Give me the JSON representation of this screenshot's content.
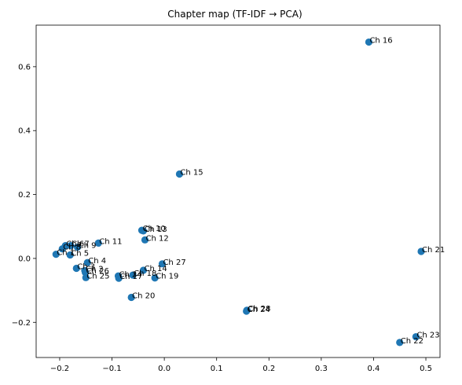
{
  "chart_data": {
    "type": "scatter",
    "title": "Chapter map (TF-IDF → PCA)",
    "xlabel": "",
    "ylabel": "",
    "xlim": [
      -0.245,
      0.527
    ],
    "ylim": [
      -0.31,
      0.73
    ],
    "xticks": [
      -0.2,
      -0.1,
      0.0,
      0.1,
      0.2,
      0.3,
      0.4,
      0.5
    ],
    "yticks": [
      -0.2,
      0.0,
      0.2,
      0.4,
      0.6
    ],
    "xtick_labels": [
      "−0.2",
      "−0.1",
      "0.0",
      "0.1",
      "0.2",
      "0.3",
      "0.4",
      "0.5"
    ],
    "ytick_labels": [
      "−0.2",
      "0.0",
      "0.2",
      "0.4",
      "0.6"
    ],
    "grid": false,
    "marker_color": "#1f77b4",
    "points": [
      {
        "label": "Ch 16",
        "x": 0.391,
        "y": 0.677
      },
      {
        "label": "Ch 15",
        "x": 0.029,
        "y": 0.264
      },
      {
        "label": "Ch 10",
        "x": -0.043,
        "y": 0.088
      },
      {
        "label": "Ch 13",
        "x": -0.04,
        "y": 0.086
      },
      {
        "label": "Ch 12",
        "x": -0.037,
        "y": 0.058
      },
      {
        "label": "Ch 11",
        "x": -0.126,
        "y": 0.048
      },
      {
        "label": "Ch 6",
        "x": -0.189,
        "y": 0.04
      },
      {
        "label": "Ch 7",
        "x": -0.179,
        "y": 0.04
      },
      {
        "label": "Ch 9",
        "x": -0.166,
        "y": 0.035
      },
      {
        "label": "Ch 8",
        "x": -0.195,
        "y": 0.03
      },
      {
        "label": "Ch 5",
        "x": -0.18,
        "y": 0.011
      },
      {
        "label": "Ch 1",
        "x": -0.207,
        "y": 0.013
      },
      {
        "label": "Ch 4",
        "x": -0.147,
        "y": -0.013
      },
      {
        "label": "Ch 21",
        "x": 0.491,
        "y": 0.022
      },
      {
        "label": "Ch 27",
        "x": -0.004,
        "y": -0.017
      },
      {
        "label": "Ch 3",
        "x": -0.168,
        "y": -0.031
      },
      {
        "label": "Ch 2",
        "x": -0.152,
        "y": -0.038
      },
      {
        "label": "Ch 26",
        "x": -0.151,
        "y": -0.044
      },
      {
        "label": "Ch 25",
        "x": -0.15,
        "y": -0.06
      },
      {
        "label": "Ch 14",
        "x": -0.04,
        "y": -0.037
      },
      {
        "label": "Ch 24",
        "x": -0.088,
        "y": -0.055
      },
      {
        "label": "Ch 17",
        "x": -0.087,
        "y": -0.062
      },
      {
        "label": "Ch 18",
        "x": -0.06,
        "y": -0.052
      },
      {
        "label": "Ch 19",
        "x": -0.018,
        "y": -0.061
      },
      {
        "label": "Ch 20",
        "x": -0.063,
        "y": -0.122
      },
      {
        "label": "Ch 28",
        "x": 0.158,
        "y": -0.162
      },
      {
        "label": "Ch 24",
        "x": 0.157,
        "y": -0.165
      },
      {
        "label": "Ch 23",
        "x": 0.481,
        "y": -0.245
      },
      {
        "label": "Ch 22",
        "x": 0.45,
        "y": -0.263
      }
    ]
  }
}
